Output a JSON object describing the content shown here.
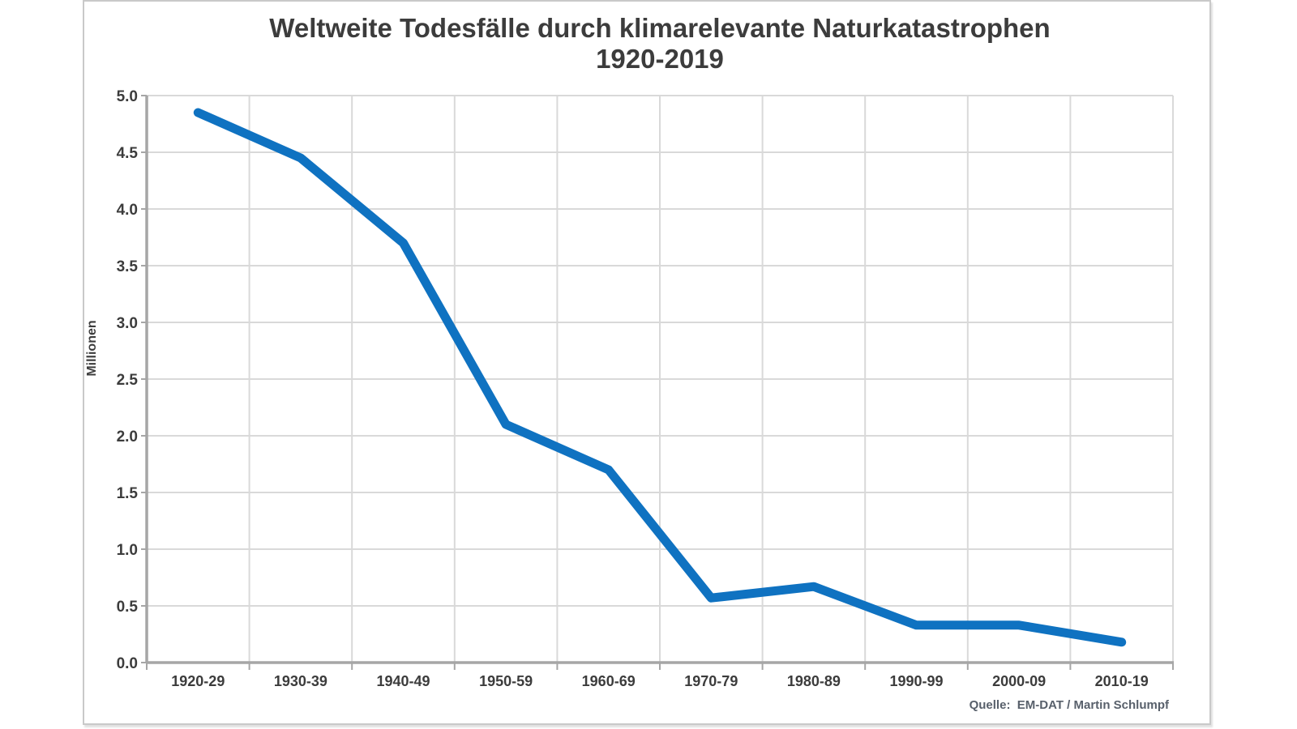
{
  "chart_data": {
    "type": "line",
    "title": "Weltweite Todesfälle durch klimarelevante Naturkatastrophen",
    "subtitle": "1920-2019",
    "ylabel": "Millionen",
    "source": "Quelle:  EM-DAT / Martin Schlumpf",
    "categories": [
      "1920-29",
      "1930-39",
      "1940-49",
      "1950-59",
      "1960-69",
      "1970-79",
      "1980-89",
      "1990-99",
      "2000-09",
      "2010-19"
    ],
    "values": [
      4.85,
      4.45,
      3.7,
      2.1,
      1.7,
      0.57,
      0.67,
      0.33,
      0.33,
      0.18
    ],
    "ylim": [
      0,
      5
    ],
    "ytick_step": 0.5,
    "ytick_labels": [
      "0.0",
      "0.5",
      "1.0",
      "1.5",
      "2.0",
      "2.5",
      "3.0",
      "3.5",
      "4.0",
      "4.5",
      "5.0"
    ],
    "grid": true,
    "legend": "none",
    "line_color": "#0f72c1"
  },
  "colors": {
    "background": "#ffffff",
    "gridline": "#d9d9d9",
    "axis": "#a6a6a6",
    "text_dark": "#3c3c3c",
    "source_text": "#58606b",
    "frame_border": "#c9c9c9"
  }
}
